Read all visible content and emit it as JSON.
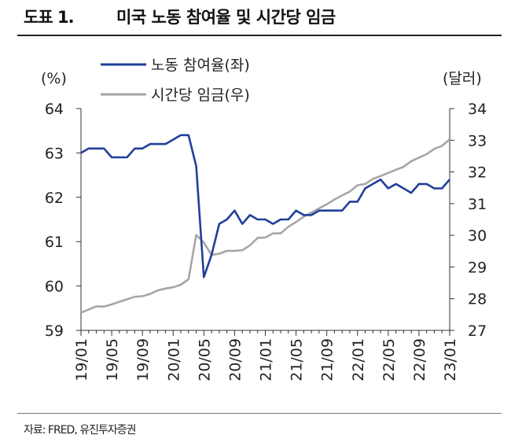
{
  "figure": {
    "label": "도표 1.",
    "title": "미국 노동 참여율 및 시간당 임금",
    "source": "자료: FRED, 유진투자증권"
  },
  "chart_data": {
    "type": "line",
    "categories": [
      "19/01",
      "19/02",
      "19/03",
      "19/04",
      "19/05",
      "19/06",
      "19/07",
      "19/08",
      "19/09",
      "19/10",
      "19/11",
      "19/12",
      "20/01",
      "20/02",
      "20/03",
      "20/04",
      "20/05",
      "20/06",
      "20/07",
      "20/08",
      "20/09",
      "20/10",
      "20/11",
      "20/12",
      "21/01",
      "21/02",
      "21/03",
      "21/04",
      "21/05",
      "21/06",
      "21/07",
      "21/08",
      "21/09",
      "21/10",
      "21/11",
      "21/12",
      "22/01",
      "22/02",
      "22/03",
      "22/04",
      "22/05",
      "22/06",
      "22/07",
      "22/08",
      "22/09",
      "22/10",
      "22/11",
      "22/12",
      "23/01"
    ],
    "xtick_labels": [
      "19/01",
      "19/05",
      "19/09",
      "20/01",
      "20/05",
      "20/09",
      "21/01",
      "21/05",
      "21/09",
      "22/01",
      "22/05",
      "22/09",
      "23/01"
    ],
    "left_axis": {
      "label": "(%)",
      "ylim": [
        59,
        64
      ],
      "ticks": [
        "59",
        "60",
        "61",
        "62",
        "63",
        "64"
      ]
    },
    "right_axis": {
      "label": "(달러)",
      "ylim": [
        27,
        34
      ],
      "ticks": [
        "27",
        "28",
        "29",
        "30",
        "31",
        "32",
        "33",
        "34"
      ]
    },
    "series": [
      {
        "name": "노동 참여율(좌)",
        "axis": "left",
        "color": "#1f3f99",
        "values": [
          63.0,
          63.1,
          63.1,
          63.1,
          62.9,
          62.9,
          62.9,
          63.1,
          63.1,
          63.2,
          63.2,
          63.2,
          63.3,
          63.4,
          63.4,
          62.7,
          60.2,
          60.7,
          61.4,
          61.5,
          61.7,
          61.4,
          61.6,
          61.5,
          61.5,
          61.4,
          61.5,
          61.5,
          61.7,
          61.6,
          61.6,
          61.7,
          61.7,
          61.7,
          61.7,
          61.9,
          61.9,
          62.2,
          62.3,
          62.4,
          62.2,
          62.3,
          62.2,
          62.1,
          62.3,
          62.3,
          62.2,
          62.2,
          62.4
        ]
      },
      {
        "name": "시간당 임금(우)",
        "axis": "right",
        "color": "#a6a6a6",
        "values": [
          27.56,
          27.66,
          27.76,
          27.75,
          27.82,
          27.9,
          27.98,
          28.06,
          28.08,
          28.15,
          28.26,
          28.32,
          28.36,
          28.44,
          28.61,
          30.01,
          29.77,
          29.38,
          29.42,
          29.51,
          29.51,
          29.53,
          29.68,
          29.92,
          29.93,
          30.06,
          30.06,
          30.27,
          30.42,
          30.59,
          30.72,
          30.85,
          30.98,
          31.13,
          31.26,
          31.38,
          31.58,
          31.62,
          31.78,
          31.87,
          31.97,
          32.07,
          32.16,
          32.34,
          32.45,
          32.56,
          32.73,
          32.82,
          33.03
        ]
      }
    ],
    "grid": false,
    "legend": "top-center"
  }
}
